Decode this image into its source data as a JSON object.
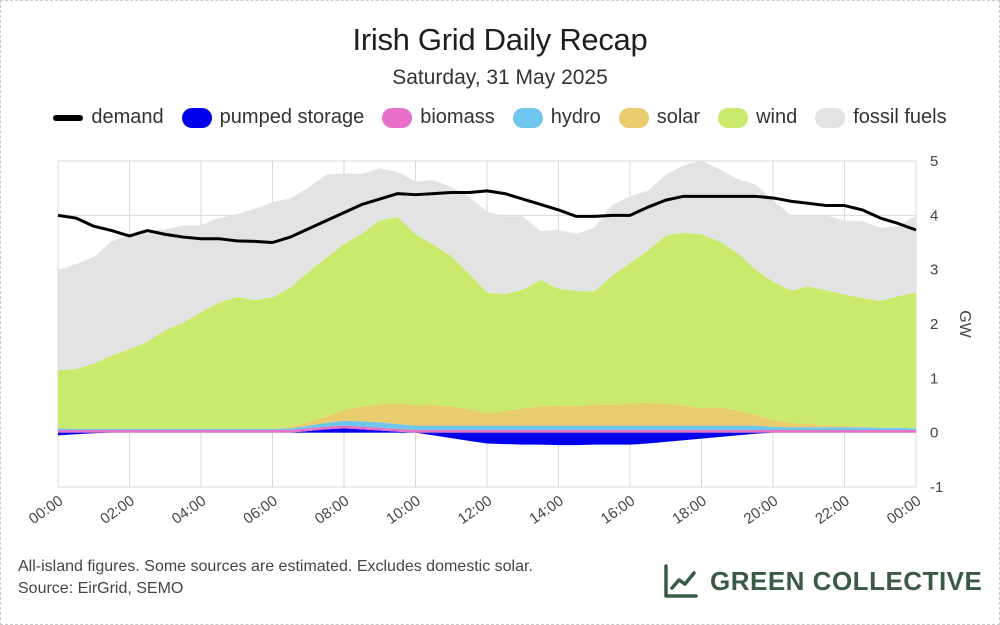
{
  "chart_data": {
    "type": "area",
    "title": "Irish Grid Daily Recap",
    "subtitle": "Saturday, 31 May 2025",
    "ylabel": "GW",
    "xlabel": "",
    "ylim": [
      -1,
      5
    ],
    "yticks": [
      5,
      4,
      3,
      2,
      1,
      0,
      -1
    ],
    "xlim": [
      0,
      24
    ],
    "xticks": [
      "00:00",
      "02:00",
      "04:00",
      "06:00",
      "08:00",
      "10:00",
      "12:00",
      "14:00",
      "16:00",
      "18:00",
      "20:00",
      "22:00",
      "00:00"
    ],
    "x": [
      0,
      0.5,
      1,
      1.5,
      2,
      2.5,
      3,
      3.5,
      4,
      4.5,
      5,
      5.5,
      6,
      6.5,
      7,
      7.5,
      8,
      8.5,
      9,
      9.5,
      10,
      10.5,
      11,
      11.5,
      12,
      12.5,
      13,
      13.5,
      14,
      14.5,
      15,
      15.5,
      16,
      16.5,
      17,
      17.5,
      18,
      18.5,
      19,
      19.5,
      20,
      20.5,
      21,
      21.5,
      22,
      22.5,
      23,
      23.5,
      24
    ],
    "series": [
      {
        "name": "pumped storage",
        "color": "#0000ee",
        "values": [
          -0.05,
          -0.03,
          -0.01,
          0,
          0,
          0,
          0,
          0,
          0,
          0,
          0,
          0,
          0,
          0,
          0.03,
          0.06,
          0.08,
          0.06,
          0.04,
          0.02,
          0,
          -0.05,
          -0.1,
          -0.15,
          -0.2,
          -0.21,
          -0.22,
          -0.22,
          -0.23,
          -0.23,
          -0.22,
          -0.22,
          -0.22,
          -0.2,
          -0.17,
          -0.14,
          -0.11,
          -0.08,
          -0.05,
          -0.02,
          0,
          0,
          0,
          0,
          0,
          0,
          0,
          0,
          0
        ]
      },
      {
        "name": "biomass",
        "color": "#e770c8",
        "values": [
          0.05,
          0.05,
          0.05,
          0.05,
          0.05,
          0.05,
          0.05,
          0.05,
          0.05,
          0.05,
          0.05,
          0.05,
          0.05,
          0.05,
          0.05,
          0.05,
          0.05,
          0.05,
          0.05,
          0.05,
          0.05,
          0.05,
          0.05,
          0.05,
          0.05,
          0.05,
          0.05,
          0.05,
          0.05,
          0.05,
          0.05,
          0.05,
          0.05,
          0.05,
          0.05,
          0.05,
          0.05,
          0.05,
          0.05,
          0.05,
          0.05,
          0.05,
          0.05,
          0.05,
          0.05,
          0.05,
          0.05,
          0.05,
          0.05
        ]
      },
      {
        "name": "hydro",
        "color": "#6ec6ec",
        "values": [
          0.03,
          0.02,
          0.02,
          0.02,
          0.02,
          0.02,
          0.02,
          0.02,
          0.02,
          0.02,
          0.02,
          0.02,
          0.02,
          0.03,
          0.05,
          0.07,
          0.09,
          0.1,
          0.1,
          0.09,
          0.08,
          0.08,
          0.08,
          0.08,
          0.08,
          0.08,
          0.08,
          0.08,
          0.08,
          0.08,
          0.08,
          0.08,
          0.08,
          0.08,
          0.08,
          0.08,
          0.08,
          0.08,
          0.08,
          0.08,
          0.06,
          0.05,
          0.05,
          0.05,
          0.05,
          0.05,
          0.04,
          0.04,
          0.03
        ]
      },
      {
        "name": "solar",
        "color": "#e9cc6e",
        "values": [
          0,
          0,
          0,
          0,
          0,
          0,
          0,
          0,
          0,
          0,
          0,
          0,
          0,
          0.03,
          0.06,
          0.12,
          0.2,
          0.27,
          0.33,
          0.38,
          0.38,
          0.38,
          0.35,
          0.3,
          0.22,
          0.26,
          0.32,
          0.35,
          0.37,
          0.36,
          0.39,
          0.38,
          0.41,
          0.42,
          0.4,
          0.37,
          0.32,
          0.34,
          0.28,
          0.2,
          0.12,
          0.08,
          0.06,
          0.04,
          0.02,
          0.01,
          0,
          0,
          0
        ]
      },
      {
        "name": "wind",
        "color": "#c9ea6c",
        "values": [
          1.07,
          1.1,
          1.2,
          1.35,
          1.47,
          1.6,
          1.82,
          1.95,
          2.15,
          2.32,
          2.43,
          2.37,
          2.42,
          2.56,
          2.77,
          2.92,
          3.05,
          3.18,
          3.39,
          3.43,
          3.14,
          2.95,
          2.77,
          2.5,
          2.23,
          2.16,
          2.18,
          2.33,
          2.15,
          2.12,
          2.08,
          2.38,
          2.58,
          2.8,
          3.1,
          3.18,
          3.2,
          3.05,
          2.9,
          2.68,
          2.55,
          2.44,
          2.53,
          2.48,
          2.42,
          2.37,
          2.33,
          2.42,
          2.5
        ]
      },
      {
        "name": "fossil fuels",
        "color": "#e3e3e3",
        "values": [
          1.84,
          1.93,
          1.96,
          2.1,
          2.1,
          2.05,
          1.85,
          1.79,
          1.6,
          1.56,
          1.52,
          1.68,
          1.75,
          1.64,
          1.55,
          1.53,
          1.3,
          1.1,
          0.96,
          0.83,
          0.97,
          1.19,
          1.27,
          1.41,
          1.49,
          1.43,
          1.35,
          0.9,
          1.08,
          1.05,
          1.17,
          1.3,
          1.23,
          1.1,
          1.12,
          1.24,
          1.36,
          1.33,
          1.36,
          1.56,
          1.5,
          1.38,
          1.31,
          1.38,
          1.36,
          1.41,
          1.35,
          1.29,
          1.42
        ]
      }
    ],
    "demand": {
      "name": "demand",
      "color": "#000000",
      "values": [
        4.0,
        3.95,
        3.8,
        3.72,
        3.62,
        3.72,
        3.65,
        3.6,
        3.57,
        3.57,
        3.53,
        3.52,
        3.5,
        3.6,
        3.75,
        3.9,
        4.05,
        4.2,
        4.3,
        4.4,
        4.38,
        4.4,
        4.42,
        4.42,
        4.45,
        4.4,
        4.3,
        4.2,
        4.1,
        3.98,
        3.98,
        4.0,
        4.0,
        4.15,
        4.28,
        4.35,
        4.35,
        4.35,
        4.35,
        4.35,
        4.32,
        4.26,
        4.22,
        4.18,
        4.18,
        4.1,
        3.95,
        3.85,
        3.73
      ]
    },
    "legend": [
      "demand",
      "pumped storage",
      "biomass",
      "hydro",
      "solar",
      "wind",
      "fossil fuels"
    ]
  },
  "footnote": {
    "line1": "All-island figures. Some sources are estimated. Excludes domestic solar.",
    "line2": "Source: EirGrid, SEMO"
  },
  "brand": {
    "name": "GREEN COLLECTIVE",
    "icon": "trend-chart-icon",
    "color": "#3b5a43"
  },
  "colors": {
    "grid": "#d9d9d9",
    "axis": "#666666"
  }
}
